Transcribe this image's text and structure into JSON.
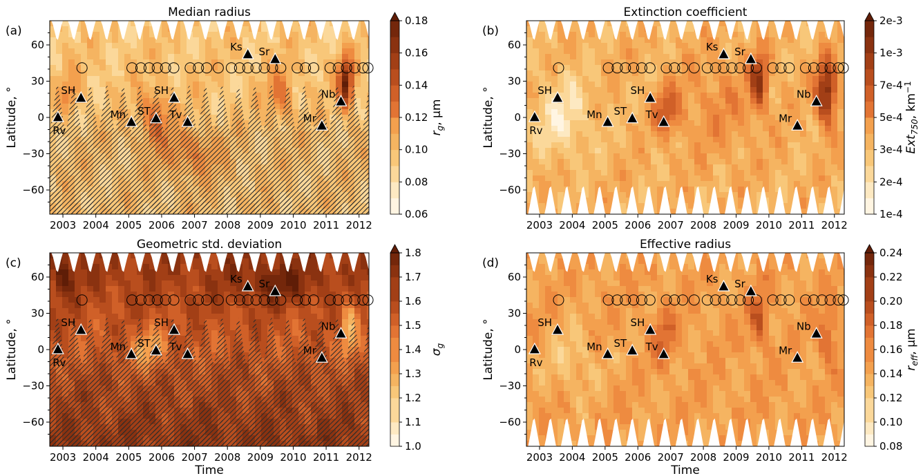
{
  "figure": {
    "xlabel": "Time",
    "ylabel": "Latitude, °",
    "x_ticks": [
      2003,
      2004,
      2005,
      2006,
      2007,
      2008,
      2009,
      2010,
      2011,
      2012
    ],
    "y_ticks": [
      -60,
      -30,
      0,
      30,
      60
    ],
    "xlim": [
      2002.6,
      2012.3
    ],
    "ylim": [
      -80,
      80
    ]
  },
  "events": {
    "triangles": [
      {
        "label": "Rv",
        "x": 2002.85,
        "y": 0,
        "label_pos": "below"
      },
      {
        "label": "SH",
        "x": 2003.55,
        "y": 16,
        "label_pos": "left"
      },
      {
        "label": "Mn",
        "x": 2005.08,
        "y": -4,
        "label_pos": "left"
      },
      {
        "label": "ST",
        "x": 2005.83,
        "y": -1,
        "label_pos": "left"
      },
      {
        "label": "SH",
        "x": 2006.38,
        "y": 16,
        "label_pos": "left"
      },
      {
        "label": "Tv",
        "x": 2006.79,
        "y": -4,
        "label_pos": "left"
      },
      {
        "label": "Ks",
        "x": 2008.62,
        "y": 52,
        "label_pos": "left"
      },
      {
        "label": "Sr",
        "x": 2009.45,
        "y": 48,
        "label_pos": "left"
      },
      {
        "label": "Mr",
        "x": 2010.87,
        "y": -7,
        "label_pos": "left"
      },
      {
        "label": "Nb",
        "x": 2011.45,
        "y": 13,
        "label_pos": "left"
      }
    ],
    "circles": {
      "latitude": 41,
      "x": [
        2003.58,
        2005.1,
        2005.37,
        2005.62,
        2005.87,
        2006.12,
        2006.37,
        2006.87,
        2007.12,
        2007.37,
        2007.72,
        2008.12,
        2008.37,
        2008.62,
        2008.87,
        2009.12,
        2009.37,
        2009.62,
        2010.12,
        2010.37,
        2010.62,
        2011.12,
        2011.37,
        2011.62,
        2011.87,
        2012.12,
        2012.27
      ]
    }
  },
  "chart_data": [
    {
      "type": "heatmap",
      "panel": "(a)",
      "title": "Median radius",
      "xlabel": "",
      "ylabel": "Latitude, °",
      "colorbar_label": "r_g, µm",
      "colorbar_label_main": "r",
      "colorbar_label_sub": "g",
      "colorbar_label_rest": ", µm",
      "colorbar_ticks": [
        "0.06",
        "0.08",
        "0.10",
        "0.12",
        "0.14",
        "0.16",
        "0.18"
      ],
      "colorbar_levels": 12,
      "hatched": true,
      "base_level": 0.25,
      "hotspots": [
        {
          "x": 2011.6,
          "y": 28,
          "sx": 0.22,
          "sy": 20,
          "amp": 0.75
        },
        {
          "x": 2005.8,
          "y": 0,
          "sx": 0.45,
          "sy": 22,
          "amp": 0.35
        },
        {
          "x": 2006.9,
          "y": -30,
          "sx": 0.8,
          "sy": 18,
          "amp": 0.25
        },
        {
          "x": 2009.6,
          "y": 20,
          "sx": 0.35,
          "sy": 20,
          "amp": 0.3
        },
        {
          "x": 2003.2,
          "y": 20,
          "sx": 0.3,
          "sy": 15,
          "amp": 0.2
        }
      ]
    },
    {
      "type": "heatmap",
      "panel": "(b)",
      "title": "Extinction coefficient",
      "xlabel": "",
      "ylabel": "Latitude, °",
      "colorbar_label": "Ext_750, km^-1",
      "colorbar_label_main": "Ext",
      "colorbar_label_sub": "750",
      "colorbar_label_rest": ", km",
      "colorbar_label_sup": "−1",
      "colorbar_ticks": [
        "1e-4",
        "2e-4",
        "3e-4",
        "5e-4",
        "7e-4",
        "1e-3",
        "2e-3"
      ],
      "colorbar_levels": 12,
      "hatched": false,
      "base_level": 0.32,
      "hotspots": [
        {
          "x": 2011.75,
          "y": 20,
          "sx": 0.3,
          "sy": 26,
          "amp": 0.6
        },
        {
          "x": 2009.7,
          "y": 30,
          "sx": 0.25,
          "sy": 22,
          "amp": 0.5
        },
        {
          "x": 2006.9,
          "y": 5,
          "sx": 0.4,
          "sy": 20,
          "amp": 0.3
        },
        {
          "x": 2003.7,
          "y": 0,
          "sx": 0.9,
          "sy": 35,
          "amp": -0.22
        },
        {
          "x": 2008.5,
          "y": 10,
          "sx": 1.2,
          "sy": 40,
          "amp": 0.12
        }
      ]
    },
    {
      "type": "heatmap",
      "panel": "(c)",
      "title": "Geometric std. deviation",
      "xlabel": "Time",
      "ylabel": "Latitude, °",
      "colorbar_label": "σ_g",
      "colorbar_label_main": "σ",
      "colorbar_label_sub": "g",
      "colorbar_label_rest": "",
      "colorbar_ticks": [
        "1.0",
        "1.1",
        "1.2",
        "1.3",
        "1.4",
        "1.5",
        "1.6",
        "1.7",
        "1.8"
      ],
      "colorbar_levels": 16,
      "hatched": true,
      "base_level": 0.62,
      "hotspots": [
        {
          "x": 2011.7,
          "y": 20,
          "sx": 0.25,
          "sy": 25,
          "amp": -0.35
        },
        {
          "x": 2005.6,
          "y": 0,
          "sx": 0.5,
          "sy": 18,
          "amp": -0.25
        },
        {
          "x": 2009.5,
          "y": 55,
          "sx": 1.2,
          "sy": 15,
          "amp": 0.2
        },
        {
          "x": 2003.0,
          "y": 60,
          "sx": 0.3,
          "sy": 18,
          "amp": 0.25
        }
      ]
    },
    {
      "type": "heatmap",
      "panel": "(d)",
      "title": "Effective radius",
      "xlabel": "Time",
      "ylabel": "Latitude, °",
      "colorbar_label": "r_eff, µm",
      "colorbar_label_main": "r",
      "colorbar_label_sub": "eff",
      "colorbar_label_rest": ", µm",
      "colorbar_ticks": [
        "0.08",
        "0.10",
        "0.12",
        "0.14",
        "0.16",
        "0.18",
        "0.20",
        "0.22",
        "0.24"
      ],
      "colorbar_levels": 16,
      "hatched": false,
      "base_level": 0.38,
      "hotspots": [
        {
          "x": 2009.7,
          "y": 25,
          "sx": 0.28,
          "sy": 22,
          "amp": 0.28
        },
        {
          "x": 2011.8,
          "y": 10,
          "sx": 0.3,
          "sy": 22,
          "amp": 0.22
        },
        {
          "x": 2006.8,
          "y": 10,
          "sx": 0.35,
          "sy": 22,
          "amp": 0.2
        },
        {
          "x": 2004.0,
          "y": -10,
          "sx": 0.8,
          "sy": 30,
          "amp": -0.15
        }
      ]
    }
  ]
}
